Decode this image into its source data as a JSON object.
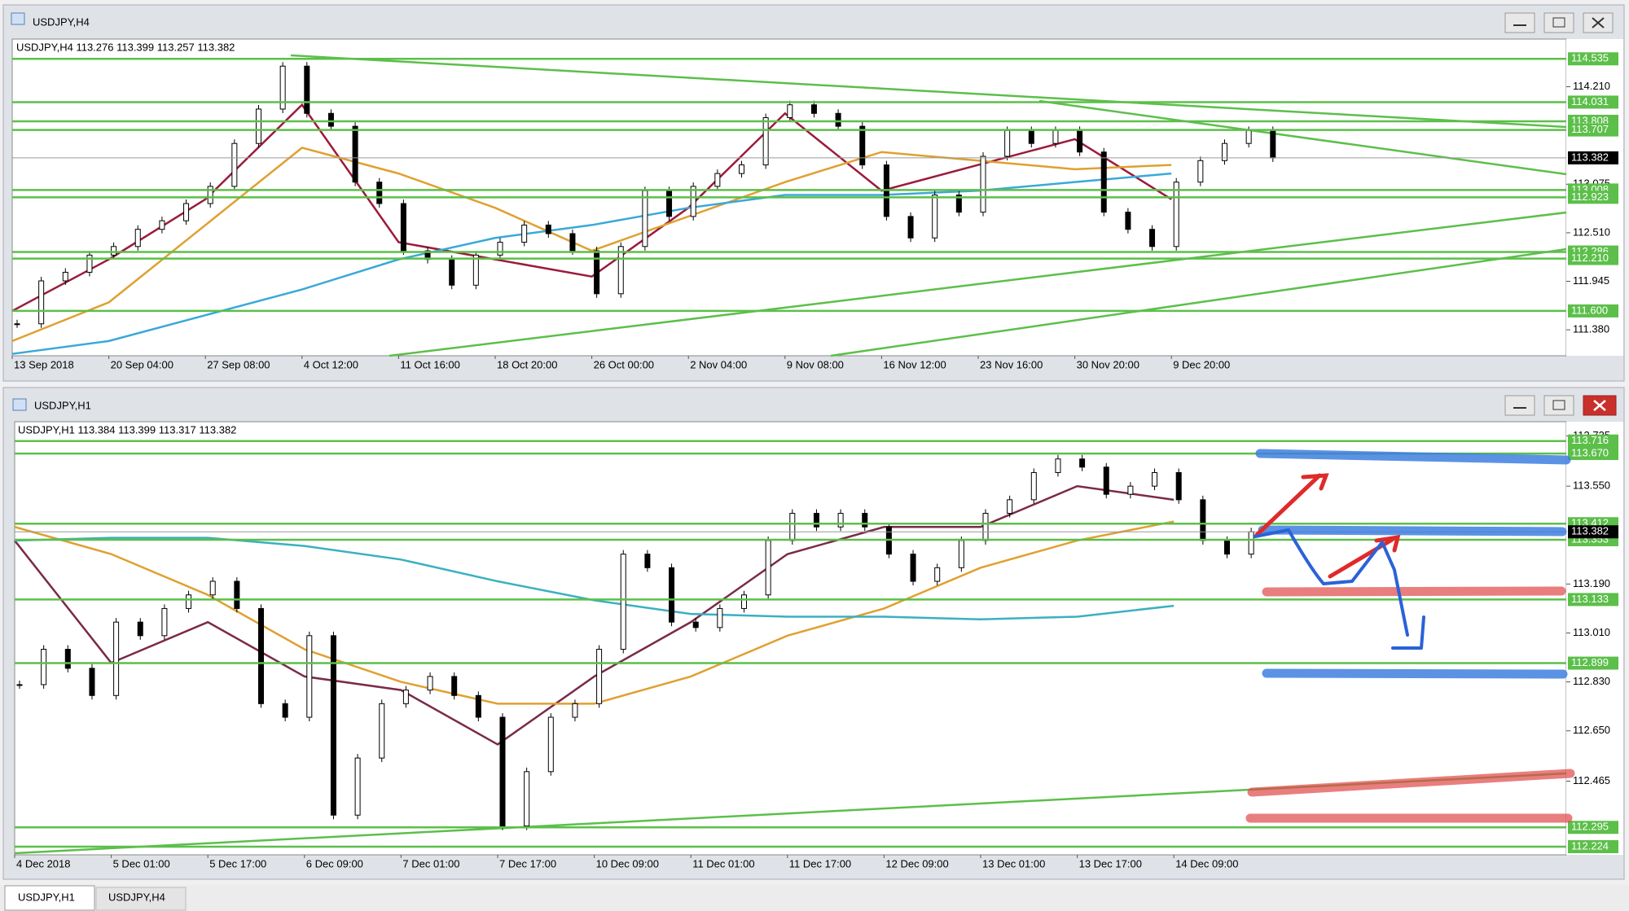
{
  "windows": [
    {
      "title": "USDJPY,H4",
      "info": "USDJPY,H4  113.276 113.399 113.257 113.382",
      "chart": {
        "type": "candlestick",
        "x_labels": [
          "13 Sep 2018",
          "20 Sep 04:00",
          "27 Sep 08:00",
          "4 Oct 12:00",
          "11 Oct 16:00",
          "18 Oct 20:00",
          "26 Oct 00:00",
          "2 Nov 04:00",
          "9 Nov 08:00",
          "16 Nov 12:00",
          "23 Nov 16:00",
          "30 Nov 20:00",
          "9 Dec 20:00"
        ],
        "close": [
          111.45,
          111.95,
          112.05,
          112.25,
          112.35,
          112.55,
          112.65,
          112.85,
          113.05,
          113.55,
          113.95,
          114.45,
          113.9,
          113.75,
          113.1,
          112.85,
          112.3,
          112.2,
          111.9,
          112.25,
          112.4,
          112.6,
          112.5,
          112.3,
          111.8,
          112.35,
          113.0,
          112.7,
          113.05,
          113.2,
          113.3,
          113.85,
          114.0,
          113.9,
          113.75,
          113.3,
          112.7,
          112.45,
          112.95,
          112.75,
          113.4,
          113.7,
          113.55,
          113.7,
          113.45,
          112.75,
          112.55,
          112.35,
          113.1,
          113.35,
          113.55,
          113.7,
          113.382
        ],
        "ma": [
          {
            "color": "#9b1b3a",
            "values": [
              111.6,
              112.2,
              112.9,
              114.0,
              112.4,
              112.2,
              112.0,
              112.8,
              113.9,
              113.0,
              113.3,
              113.6,
              112.9
            ]
          },
          {
            "color": "#e0a030",
            "values": [
              111.25,
              111.7,
              112.6,
              113.5,
              113.2,
              112.8,
              112.3,
              112.7,
              113.1,
              113.45,
              113.35,
              113.25,
              113.3
            ]
          },
          {
            "color": "#3aa8d8",
            "values": [
              111.1,
              111.25,
              111.55,
              111.85,
              112.2,
              112.45,
              112.6,
              112.8,
              112.95,
              112.95,
              113.0,
              113.1,
              113.2
            ]
          }
        ],
        "ylim": [
          111.078,
          114.765
        ],
        "yticks": [
          {
            "value": 114.21,
            "label": "114.210"
          },
          113.075,
          {
            "value": 112.51,
            "label": "112.510"
          },
          111.945,
          {
            "value": 111.38,
            "label": "111.380"
          }
        ],
        "levels": [
          114.535,
          114.031,
          113.808,
          113.707,
          113.008,
          112.923,
          112.286,
          {
            "value": 112.21,
            "label": "112.210"
          },
          {
            "value": 111.6,
            "label": "111.600"
          }
        ],
        "current": 113.382
      }
    },
    {
      "title": "USDJPY,H1",
      "info": "USDJPY,H1  113.384 113.399 113.317 113.382",
      "chart": {
        "type": "candlestick",
        "x_labels": [
          "4 Dec 2018",
          "5 Dec 01:00",
          "5 Dec 17:00",
          "6 Dec 09:00",
          "7 Dec 01:00",
          "7 Dec 17:00",
          "10 Dec 09:00",
          "11 Dec 01:00",
          "11 Dec 17:00",
          "12 Dec 09:00",
          "13 Dec 01:00",
          "13 Dec 17:00",
          "14 Dec 09:00"
        ],
        "close": [
          112.82,
          112.95,
          112.88,
          112.78,
          113.05,
          113.0,
          113.1,
          113.15,
          113.2,
          113.1,
          112.75,
          112.7,
          113.0,
          112.34,
          112.55,
          112.75,
          112.8,
          112.85,
          112.78,
          112.7,
          112.3,
          112.5,
          112.7,
          112.75,
          112.95,
          113.3,
          113.25,
          113.05,
          113.03,
          113.1,
          113.15,
          113.35,
          113.45,
          113.4,
          113.45,
          113.4,
          113.3,
          113.2,
          113.25,
          113.35,
          113.45,
          113.5,
          113.6,
          113.65,
          113.62,
          113.52,
          113.55,
          113.6,
          113.5,
          113.35,
          113.3,
          113.382
        ],
        "ma": [
          {
            "color": "#7a2a4a",
            "values": [
              113.35,
              112.9,
              113.05,
              112.85,
              112.8,
              112.6,
              112.85,
              113.05,
              113.3,
              113.4,
              113.4,
              113.55,
              113.5
            ]
          },
          {
            "color": "#e0a030",
            "values": [
              113.4,
              113.3,
              113.15,
              112.95,
              112.83,
              112.75,
              112.75,
              112.85,
              113.0,
              113.1,
              113.25,
              113.35,
              113.42
            ]
          },
          {
            "color": "#3ab0c0",
            "values": [
              113.35,
              113.36,
              113.36,
              113.33,
              113.28,
              113.2,
              113.13,
              113.08,
              113.07,
              113.07,
              113.06,
              113.07,
              113.11
            ]
          }
        ],
        "ylim": [
          112.194,
          113.787
        ],
        "yticks": [
          113.735,
          {
            "value": 113.55,
            "label": "113.550"
          },
          {
            "value": 113.19,
            "label": "113.190"
          },
          {
            "value": 113.01,
            "label": "113.010"
          },
          {
            "value": 112.83,
            "label": "112.830"
          },
          {
            "value": 112.65,
            "label": "112.650"
          },
          112.465
        ],
        "levels": [
          113.716,
          {
            "value": 113.67,
            "label": "113.670"
          },
          113.412,
          113.353,
          113.133,
          112.899,
          112.295,
          112.224
        ],
        "current": 113.382
      }
    }
  ],
  "tabs": [
    "USDJPY,H1",
    "USDJPY,H4"
  ]
}
